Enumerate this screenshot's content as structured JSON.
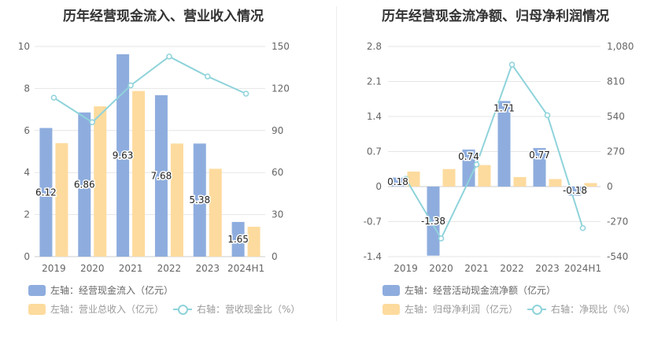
{
  "chart_data": [
    {
      "type": "bar",
      "title": "历年经营现金流入、营业收入情况",
      "categories": [
        "2019",
        "2020",
        "2021",
        "2022",
        "2023",
        "2024H1"
      ],
      "yleft": {
        "min": 0,
        "max": 10,
        "ticks": [
          "0",
          "2",
          "4",
          "6",
          "8",
          "10"
        ]
      },
      "yright": {
        "min": 0,
        "max": 150,
        "ticks": [
          "0",
          "30",
          "60",
          "90",
          "120",
          "150"
        ]
      },
      "series": [
        {
          "name": "左轴：经营现金流入（亿元）",
          "axis": "left",
          "kind": "bar",
          "color": "#8eadde",
          "values": [
            6.12,
            6.86,
            9.63,
            7.68,
            5.38,
            1.65
          ],
          "labels": [
            "6.12",
            "6.86",
            "9.63",
            "7.68",
            "5.38",
            "1.65"
          ]
        },
        {
          "name": "左轴：营业总收入（亿元）",
          "axis": "left",
          "kind": "bar",
          "color": "#fddb9e",
          "values": [
            5.4,
            7.15,
            7.88,
            5.38,
            4.18,
            1.42
          ]
        },
        {
          "name": "右轴：营收现金比（%）",
          "axis": "right",
          "kind": "line",
          "color": "#8fd3db",
          "values": [
            113.4,
            95.9,
            122.2,
            142.8,
            128.6,
            116.3
          ]
        }
      ],
      "grid": true,
      "legend": "bottom"
    },
    {
      "type": "bar",
      "title": "历年经营现金流净额、归母净利润情况",
      "categories": [
        "2019",
        "2020",
        "2021",
        "2022",
        "2023",
        "2024H1"
      ],
      "yleft": {
        "min": -1.4,
        "max": 2.8,
        "ticks": [
          "-1.4",
          "-0.7",
          "0",
          "0.7",
          "1.4",
          "2.1",
          "2.8"
        ]
      },
      "yright": {
        "min": -540,
        "max": 1080,
        "ticks": [
          "-540",
          "-270",
          "0",
          "270",
          "540",
          "810",
          "1,080"
        ]
      },
      "series": [
        {
          "name": "左轴：经营活动现金流净额（亿元）",
          "axis": "left",
          "kind": "bar",
          "color": "#8eadde",
          "values": [
            0.18,
            -1.38,
            0.74,
            1.71,
            0.77,
            -0.18
          ],
          "labels": [
            "0.18",
            "-1.38",
            "0.74",
            "1.71",
            "0.77",
            "-0.18"
          ]
        },
        {
          "name": "左轴：归母净利润（亿元）",
          "axis": "left",
          "kind": "bar",
          "color": "#fddb9e",
          "values": [
            0.3,
            0.35,
            0.43,
            0.19,
            0.15,
            0.07
          ]
        },
        {
          "name": "右轴：净现比（%）",
          "axis": "right",
          "kind": "line",
          "color": "#8fd3db",
          "values": [
            60,
            -400,
            170,
            940,
            550,
            -320
          ]
        }
      ],
      "grid": true,
      "legend": "bottom"
    }
  ]
}
